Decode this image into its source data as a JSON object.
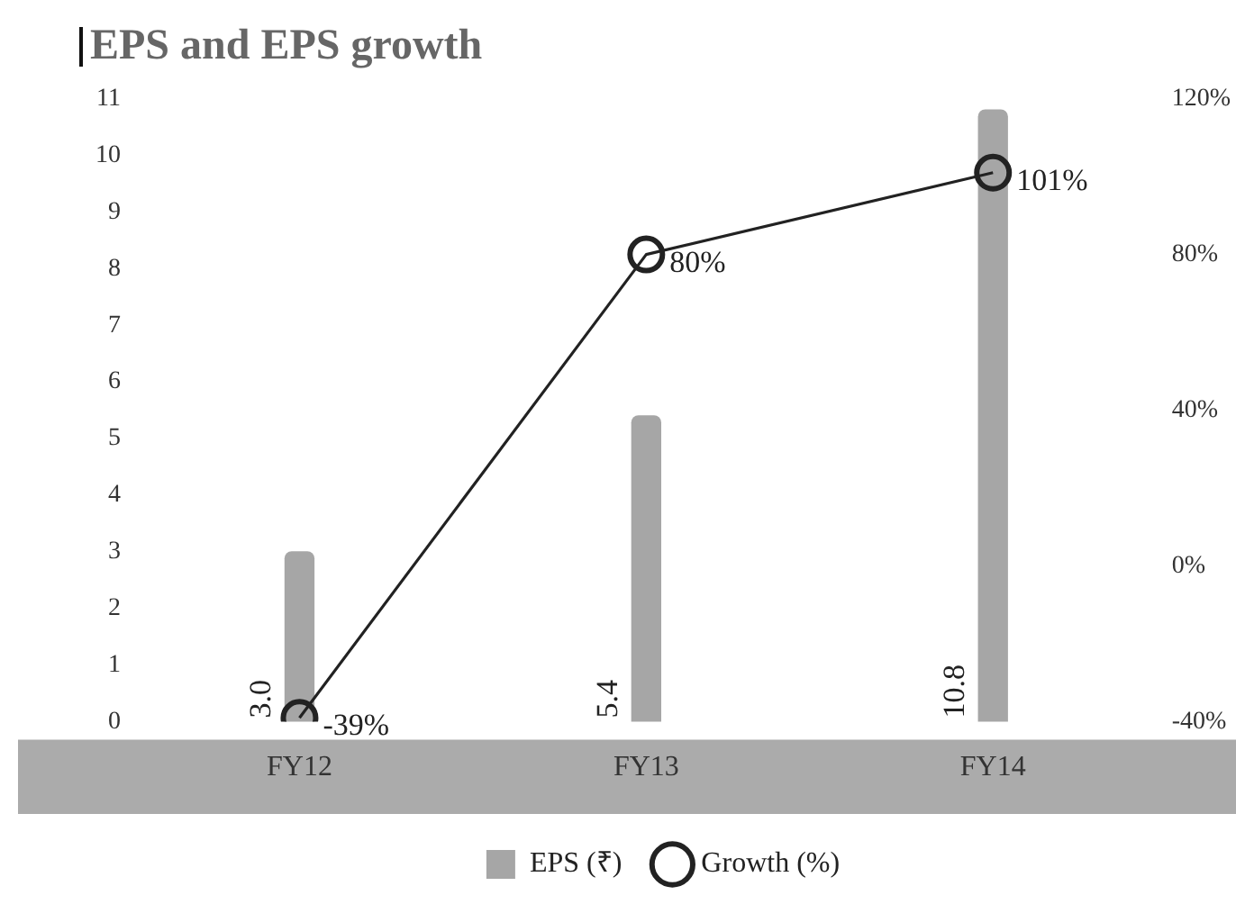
{
  "chart_data": {
    "type": "bar",
    "title": "EPS and EPS growth",
    "categories": [
      "FY12",
      "FY13",
      "FY14"
    ],
    "series": [
      {
        "name": "EPS (₹)",
        "color": "#a6a6a6",
        "values": [
          3.0,
          5.4,
          10.8
        ],
        "value_labels": [
          "3.0",
          "5.4",
          "10.8"
        ]
      },
      {
        "name": "Growth (%)",
        "type": "line",
        "axis": "y2",
        "color": "#222222",
        "values": [
          -39,
          80,
          101
        ],
        "value_labels": [
          "-39%",
          "80%",
          "101%"
        ]
      }
    ],
    "ylim": [
      0,
      11
    ],
    "yticks": [
      0,
      1,
      2,
      3,
      4,
      5,
      6,
      7,
      8,
      9,
      10,
      11
    ],
    "y2lim": [
      -40,
      120
    ],
    "y2ticks": [
      {
        "value": -40,
        "label": "-40%"
      },
      {
        "value": 0,
        "label": "0%"
      },
      {
        "value": 40,
        "label": "40%"
      },
      {
        "value": 80,
        "label": "80%"
      },
      {
        "value": 120,
        "label": "120%"
      }
    ],
    "marker": "circle",
    "legend": "bottom",
    "grid": false
  }
}
